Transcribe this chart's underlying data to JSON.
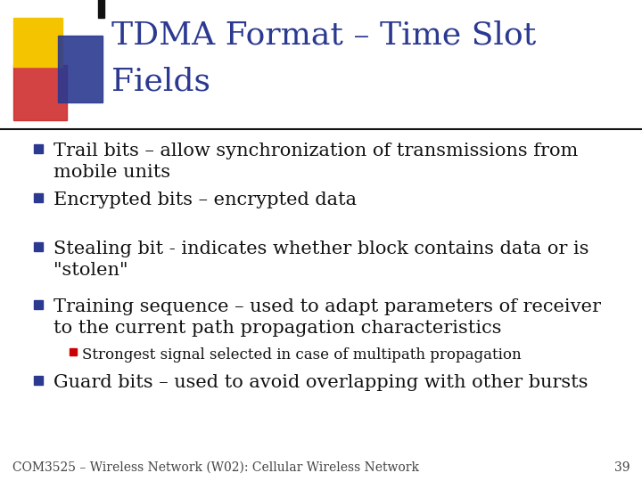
{
  "title_line1": "TDMA Format – Time Slot",
  "title_line2": "Fields",
  "title_color": "#2B3990",
  "title_fontsize": 26,
  "background_color": "#FFFFFF",
  "bullet_color": "#2B3990",
  "sub_bullet_color": "#CC0000",
  "bullet_fontsize": 15,
  "sub_bullet_fontsize": 12,
  "footer_text": "COM3525 – Wireless Network (W02): Cellular Wireless Network",
  "footer_number": "39",
  "footer_fontsize": 10,
  "bullets": [
    "Trail bits – allow synchronization of transmissions from\nmobile units",
    "Encrypted bits – encrypted data",
    "Stealing bit - indicates whether block contains data or is\n\"stolen\"",
    "Training sequence – used to adapt parameters of receiver\nto the current path propagation characteristics",
    "Guard bits – used to avoid overlapping with other bursts"
  ],
  "sub_bullets": {
    "3": [
      "Strongest signal selected in case of multipath propagation"
    ]
  },
  "logo_colors": {
    "yellow": "#F5C400",
    "red": "#CC2222",
    "blue": "#2B3990",
    "black": "#111111"
  }
}
